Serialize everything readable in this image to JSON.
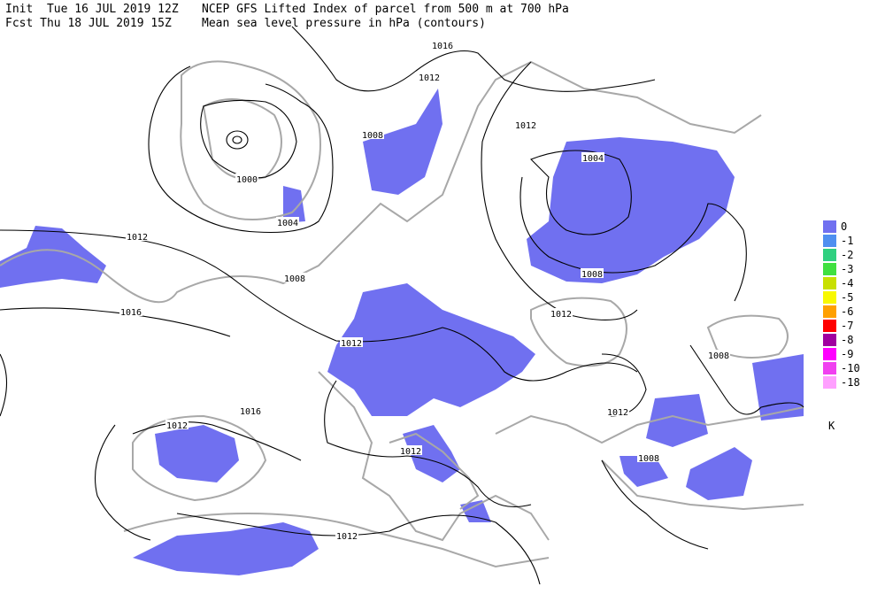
{
  "header": {
    "line1": {
      "run": "Init  Tue 16 JUL 2019 12Z",
      "title": "NCEP GFS Lifted Index of parcel from 500 m at 700 hPa"
    },
    "line2": {
      "run": "Fcst Thu 18 JUL 2019 15Z",
      "title": "Mean sea level pressure in hPa (contours)"
    }
  },
  "contour_labels": [
    "1016",
    "1012",
    "1008",
    "1000",
    "1004",
    "1012",
    "1004",
    "1008",
    "1012",
    "1016",
    "1008",
    "1012",
    "1012",
    "1008",
    "1012",
    "1016",
    "1012",
    "1012",
    "1008",
    "1012"
  ],
  "legend": {
    "items": [
      {
        "label": "0",
        "color": "#7070f0"
      },
      {
        "label": "-1",
        "color": "#4f8ff0"
      },
      {
        "label": "-2",
        "color": "#30d080"
      },
      {
        "label": "-3",
        "color": "#40e040"
      },
      {
        "label": "-4",
        "color": "#c8e000"
      },
      {
        "label": "-5",
        "color": "#f8f800"
      },
      {
        "label": "-6",
        "color": "#ffa000"
      },
      {
        "label": "-7",
        "color": "#ff0000"
      },
      {
        "label": "-8",
        "color": "#a000a0"
      },
      {
        "label": "-9",
        "color": "#ff00ff"
      },
      {
        "label": "-10",
        "color": "#f040f0"
      },
      {
        "label": "-18",
        "color": "#ffa0ff"
      }
    ],
    "unit": "K"
  }
}
